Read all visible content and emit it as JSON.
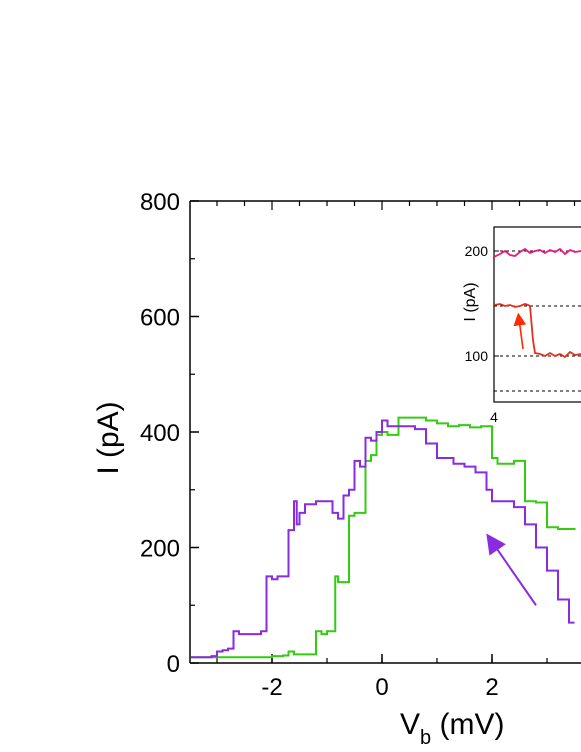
{
  "chart_data": {
    "type": "line",
    "xlabel_main": "V",
    "xlabel_sub": "b",
    "xlabel_unit": " (mV)",
    "ylabel": "I (pA)",
    "xlim": [
      -3.5,
      3.5
    ],
    "ylim": [
      0,
      800
    ],
    "x_ticks": [
      -2,
      0,
      2
    ],
    "x_tick_labels": [
      "-2",
      "0",
      "2"
    ],
    "y_ticks": [
      0,
      200,
      400,
      600,
      800
    ],
    "y_tick_labels": [
      "0",
      "200",
      "400",
      "600",
      "800"
    ],
    "grid": false,
    "colors": {
      "green": "#33cc11",
      "purple": "#8a2be2",
      "arrow": "#8a2be2"
    },
    "series": [
      {
        "color": "#33cc11",
        "x": [
          -3.5,
          -2.8,
          -2.0,
          -1.8,
          -1.7,
          -1.6,
          -1.3,
          -1.2,
          -1.1,
          -1.0,
          -0.9,
          -0.85,
          -0.8,
          -0.7,
          -0.6,
          -0.5,
          -0.4,
          -0.3,
          -0.2,
          -0.1,
          0.0,
          0.1,
          0.2,
          0.3,
          0.5,
          0.8,
          1.0,
          1.2,
          1.4,
          1.6,
          1.8,
          2.0,
          2.1,
          2.2,
          2.4,
          2.6,
          2.8,
          2.9,
          3.0,
          3.2,
          3.5
        ],
        "y": [
          10,
          10,
          12,
          13,
          20,
          15,
          15,
          55,
          50,
          55,
          55,
          150,
          140,
          140,
          255,
          260,
          260,
          350,
          360,
          395,
          400,
          395,
          395,
          425,
          425,
          420,
          415,
          410,
          412,
          408,
          410,
          355,
          345,
          345,
          350,
          280,
          278,
          278,
          235,
          232,
          230
        ]
      },
      {
        "color": "#8a2be2",
        "x": [
          -3.5,
          -3.1,
          -3.0,
          -2.9,
          -2.8,
          -2.7,
          -2.6,
          -2.4,
          -2.2,
          -2.1,
          -2.0,
          -1.9,
          -1.8,
          -1.7,
          -1.6,
          -1.55,
          -1.5,
          -1.4,
          -1.2,
          -1.1,
          -0.9,
          -0.8,
          -0.7,
          -0.6,
          -0.5,
          -0.4,
          -0.3,
          -0.2,
          -0.1,
          0.0,
          0.1,
          0.3,
          0.6,
          0.8,
          1.0,
          1.1,
          1.3,
          1.5,
          1.7,
          1.9,
          2.0,
          2.2,
          2.4,
          2.6,
          2.8,
          3.0,
          3.2,
          3.4,
          3.5
        ],
        "y": [
          10,
          12,
          20,
          22,
          25,
          55,
          50,
          50,
          55,
          150,
          145,
          150,
          150,
          230,
          280,
          240,
          260,
          275,
          280,
          280,
          260,
          250,
          290,
          300,
          350,
          340,
          390,
          385,
          400,
          420,
          410,
          410,
          405,
          380,
          355,
          355,
          345,
          340,
          330,
          300,
          280,
          280,
          270,
          240,
          200,
          160,
          110,
          70,
          70
        ]
      }
    ],
    "annotation": {
      "type": "arrow",
      "color": "#8a2be2",
      "from": [
        2.8,
        100
      ],
      "to": [
        2.0,
        210
      ]
    },
    "inset": {
      "ylabel": "I (pA)",
      "y_tick_labels": [
        "200",
        "100"
      ],
      "x_tick_labels": [
        "4"
      ],
      "colors": {
        "pink": "#e6197f",
        "red": "#e0301e",
        "arrow": "#ff2a00"
      }
    }
  }
}
